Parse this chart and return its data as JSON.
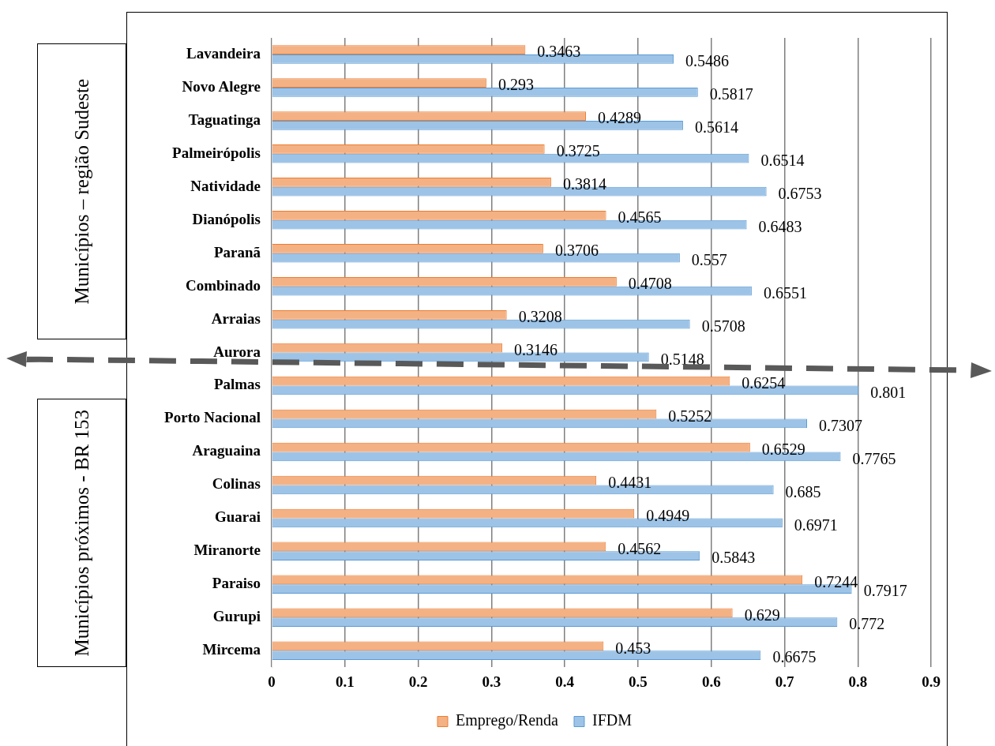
{
  "chart_data": {
    "type": "bar",
    "orientation": "horizontal",
    "categories": [
      "Lavandeira",
      "Novo Alegre",
      "Taguatinga",
      "Palmeirópolis",
      "Natividade",
      "Dianópolis",
      "Paranã",
      "Combinado",
      "Arraias",
      "Aurora",
      "Palmas",
      "Porto Nacional",
      "Araguaina",
      "Colinas",
      "Guarai",
      "Miranorte",
      "Paraiso",
      "Gurupi",
      "Mircema"
    ],
    "series": [
      {
        "name": "Emprego/Renda",
        "color": "#f4b183",
        "values": [
          0.3463,
          0.293,
          0.4289,
          0.3725,
          0.3814,
          0.4565,
          0.3706,
          0.4708,
          0.3208,
          0.3146,
          0.6254,
          0.5252,
          0.6529,
          0.4431,
          0.4949,
          0.4562,
          0.7244,
          0.629,
          0.453
        ]
      },
      {
        "name": "IFDM",
        "color": "#9dc3e6",
        "values": [
          0.5486,
          0.5817,
          0.5614,
          0.6514,
          0.6753,
          0.6483,
          0.557,
          0.6551,
          0.5708,
          0.5148,
          0.801,
          0.7307,
          0.7765,
          0.685,
          0.6971,
          0.5843,
          0.7917,
          0.772,
          0.6675
        ]
      }
    ],
    "xlim": [
      0,
      0.9
    ],
    "xticks": [
      0,
      0.1,
      0.2,
      0.3,
      0.4,
      0.5,
      0.6,
      0.7,
      0.8,
      0.9
    ],
    "grid": "x",
    "legend": "bottom",
    "data_labels": true,
    "annotations": [
      "Municípios – região Sudeste",
      "Municípios próximos - BR 153"
    ]
  }
}
